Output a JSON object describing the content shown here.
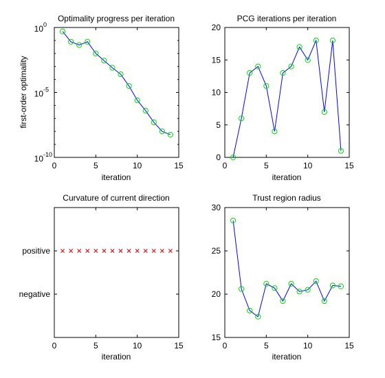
{
  "chart_data": [
    {
      "type": "line",
      "scale": "log",
      "title": "Optimality progress per iteration",
      "xlabel": "iteration",
      "ylabel": "first-order optimality",
      "xlim": [
        0,
        15
      ],
      "ylim_exp": [
        -10,
        0
      ],
      "xticks": [
        0,
        5,
        10,
        15
      ],
      "yticks_exp": [
        0,
        -5,
        -10
      ],
      "x": [
        1,
        2,
        3,
        4,
        5,
        6,
        7,
        8,
        9,
        10,
        11,
        12,
        13,
        14
      ],
      "y_log10": [
        -0.3,
        -1.1,
        -1.35,
        -1.1,
        -2.0,
        -2.55,
        -3.1,
        -3.6,
        -4.5,
        -5.6,
        -6.4,
        -7.3,
        -8.0,
        -8.25
      ],
      "line_color": "#0000ff",
      "marker_color": "#00dd00",
      "marker": "circle"
    },
    {
      "type": "line",
      "title": "PCG iterations per iteration",
      "xlabel": "iteration",
      "ylabel": "",
      "xlim": [
        0,
        15
      ],
      "ylim": [
        0,
        20
      ],
      "xticks": [
        0,
        5,
        10,
        15
      ],
      "yticks": [
        0,
        5,
        10,
        15,
        20
      ],
      "x": [
        1,
        2,
        3,
        4,
        5,
        6,
        7,
        8,
        9,
        10,
        11,
        12,
        13,
        14
      ],
      "y": [
        0,
        6,
        13,
        14,
        11,
        4,
        13,
        14,
        17,
        15,
        18,
        7,
        18,
        1
      ],
      "line_color": "#0000ff",
      "marker_color": "#00dd00",
      "marker": "circle"
    },
    {
      "type": "scatter",
      "title": "Curvature of current direction",
      "xlabel": "iteration",
      "ylabel": "",
      "xlim": [
        0,
        15
      ],
      "ylim": [
        0,
        3
      ],
      "xticks": [
        0,
        5,
        10,
        15
      ],
      "yticks": [
        {
          "value": 1,
          "label": "negative"
        },
        {
          "value": 2,
          "label": "positive"
        }
      ],
      "x": [
        1,
        2,
        3,
        4,
        5,
        6,
        7,
        8,
        9,
        10,
        11,
        12,
        13,
        14
      ],
      "y": [
        2,
        2,
        2,
        2,
        2,
        2,
        2,
        2,
        2,
        2,
        2,
        2,
        2,
        2
      ],
      "marker_color": "#dd0000",
      "marker": "x"
    },
    {
      "type": "line",
      "title": "Trust region radius",
      "xlabel": "iteration",
      "ylabel": "",
      "xlim": [
        0,
        15
      ],
      "ylim": [
        15,
        30
      ],
      "xticks": [
        0,
        5,
        10,
        15
      ],
      "yticks": [
        15,
        20,
        25,
        30
      ],
      "x": [
        1,
        2,
        3,
        4,
        5,
        6,
        7,
        8,
        9,
        10,
        11,
        12,
        13,
        14
      ],
      "y": [
        28.5,
        20.6,
        18.1,
        17.4,
        21.2,
        20.7,
        19.2,
        21.2,
        20.3,
        20.5,
        21.5,
        19.2,
        21.0,
        20.9
      ],
      "line_color": "#0000ff",
      "marker_color": "#00dd00",
      "marker": "circle"
    }
  ]
}
